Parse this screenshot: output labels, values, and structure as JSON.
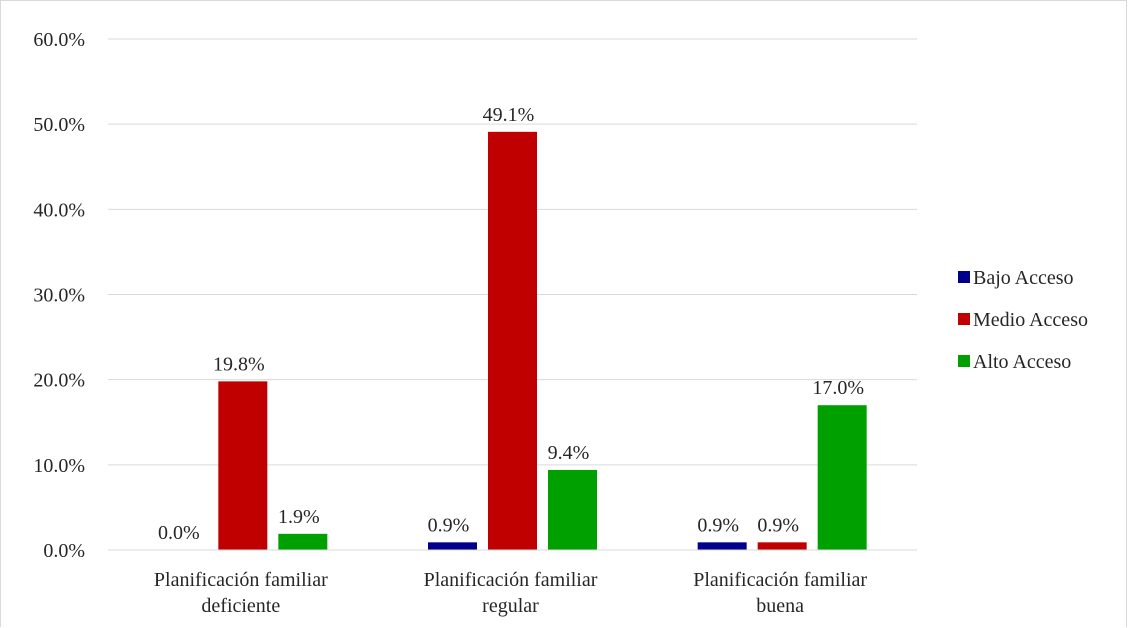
{
  "chart_data": {
    "type": "bar",
    "categories": [
      [
        "Planificación familiar",
        "deficiente"
      ],
      [
        "Planificación familiar",
        "regular"
      ],
      [
        "Planificación familiar",
        "buena"
      ]
    ],
    "series": [
      {
        "name": "Bajo Acceso",
        "color": "#00008b",
        "values": [
          0.0,
          0.9,
          0.9
        ],
        "labels": [
          "0.0%",
          "0.9%",
          "0.9%"
        ]
      },
      {
        "name": "Medio Acceso",
        "color": "#c00000",
        "values": [
          19.8,
          49.1,
          0.9
        ],
        "labels": [
          "19.8%",
          "49.1%",
          "0.9%"
        ]
      },
      {
        "name": "Alto Acceso",
        "color": "#00a000",
        "values": [
          1.9,
          9.4,
          17.0
        ],
        "labels": [
          "1.9%",
          "9.4%",
          "17.0%"
        ]
      }
    ],
    "yticks": [
      "0.0%",
      "10.0%",
      "20.0%",
      "30.0%",
      "40.0%",
      "50.0%",
      "60.0%"
    ],
    "ylim": [
      0,
      60
    ],
    "grid": true,
    "legend_position": "right"
  }
}
